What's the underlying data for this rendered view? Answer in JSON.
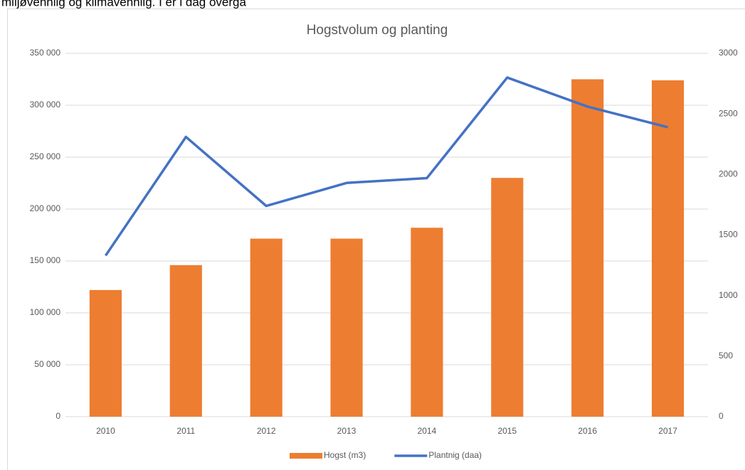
{
  "page_text": "miljøvennlig og klimavennlig. I er i dag overgå",
  "chart_data": {
    "type": "bar_line",
    "title": "Hogstvolum og planting",
    "categories": [
      "2010",
      "2011",
      "2012",
      "2013",
      "2014",
      "2015",
      "2016",
      "2017"
    ],
    "series": [
      {
        "name": "Hogst (m3)",
        "type": "bar",
        "color": "#ed7d31",
        "values": [
          122000,
          146000,
          171500,
          171500,
          182000,
          230000,
          325000,
          324000
        ]
      },
      {
        "name": "Plantnig (daa)",
        "type": "line",
        "axis": "y2",
        "color": "#4472c4",
        "values": [
          1330,
          2310,
          1740,
          1930,
          1970,
          2800,
          2560,
          2390
        ]
      }
    ],
    "ylim": [
      0,
      350000
    ],
    "yticks": [
      0,
      {
        "value": 50000,
        "label": "50 000"
      },
      {
        "value": 100000,
        "label": "100 000"
      },
      {
        "value": 150000,
        "label": "150 000"
      },
      {
        "value": 200000,
        "label": "200 000"
      },
      {
        "value": 250000,
        "label": "250 000"
      },
      {
        "value": 300000,
        "label": "300 000"
      },
      {
        "value": 350000,
        "label": "350 000"
      }
    ],
    "y2lim": [
      0,
      3000
    ],
    "y2ticks": [
      0,
      500,
      1000,
      1500,
      2000,
      2500,
      3000
    ],
    "grid": true,
    "legend": "bottom"
  }
}
